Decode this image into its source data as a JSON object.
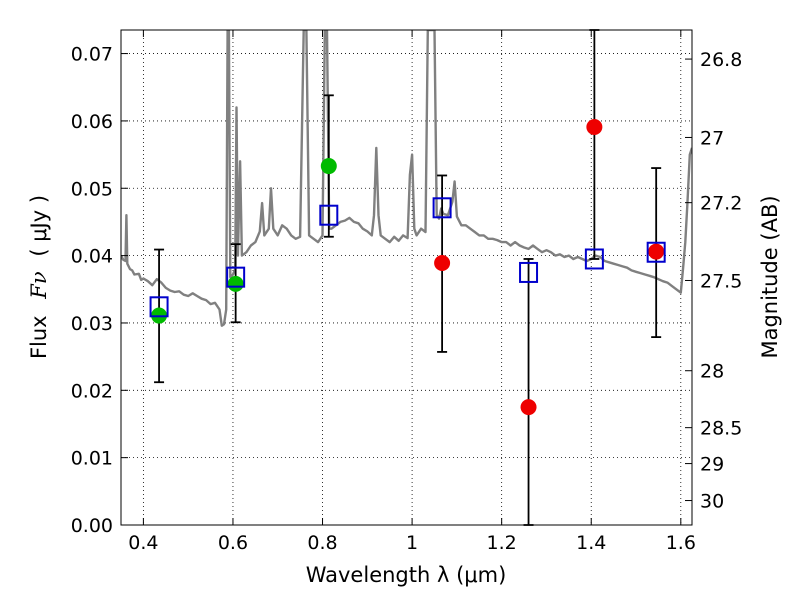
{
  "chart_data": {
    "type": "scatter",
    "xlabel": "Wavelength  λ (μm)",
    "ylabel_left_prefix": "Flux",
    "ylabel_left_symbol": "Fν",
    "ylabel_left_unit": "( μJy )",
    "ylabel_right": "Magnitude (AB)",
    "xlim": [
      0.35,
      1.625
    ],
    "ylim": [
      0.0,
      0.0735
    ],
    "grid": true,
    "x_ticks": [
      0.4,
      0.6,
      0.8,
      1.0,
      1.2,
      1.4,
      1.6
    ],
    "x_tick_labels": [
      "0.4",
      "0.6",
      "0.8",
      "1",
      "1.2",
      "1.4",
      "1.6"
    ],
    "y_ticks": [
      0.0,
      0.01,
      0.02,
      0.03,
      0.04,
      0.05,
      0.06,
      0.07
    ],
    "y_tick_labels": [
      "0.00",
      "0.01",
      "0.02",
      "0.03",
      "0.04",
      "0.05",
      "0.06",
      "0.07"
    ],
    "mag_ticks": [
      {
        "mag": 26.8,
        "label": "26.8"
      },
      {
        "mag": 27.0,
        "label": "27"
      },
      {
        "mag": 27.2,
        "label": "27.2"
      },
      {
        "mag": 27.5,
        "label": "27.5"
      },
      {
        "mag": 28.0,
        "label": "28"
      },
      {
        "mag": 28.5,
        "label": "28.5"
      },
      {
        "mag": 29.0,
        "label": "29"
      },
      {
        "mag": 30.0,
        "label": "30"
      }
    ],
    "series": [
      {
        "marker": "circle",
        "color": "#00bb00",
        "points": [
          {
            "x": 0.435,
            "y": 0.0311,
            "yerr_low": 0.0212,
            "yerr_high": 0.0409
          },
          {
            "x": 0.606,
            "y": 0.0358,
            "yerr_low": 0.0301,
            "yerr_high": 0.0417
          },
          {
            "x": 0.814,
            "y": 0.0533,
            "yerr_low": 0.0428,
            "yerr_high": 0.0638
          }
        ]
      },
      {
        "marker": "circle",
        "color": "#ee0000",
        "points": [
          {
            "x": 1.067,
            "y": 0.0389,
            "yerr_low": 0.0257,
            "yerr_high": 0.0519
          },
          {
            "x": 1.26,
            "y": 0.0175,
            "yerr_low": 0.0,
            "yerr_high": 0.0395
          },
          {
            "x": 1.407,
            "y": 0.0591,
            "yerr_low": 0.0395,
            "yerr_high": 0.0735
          },
          {
            "x": 1.545,
            "y": 0.0406,
            "yerr_low": 0.0279,
            "yerr_high": 0.053
          }
        ]
      },
      {
        "marker": "open-square",
        "color": "#0000cc",
        "points": [
          {
            "x": 0.435,
            "y": 0.0324
          },
          {
            "x": 0.606,
            "y": 0.0368
          },
          {
            "x": 0.814,
            "y": 0.046
          },
          {
            "x": 1.067,
            "y": 0.0471
          },
          {
            "x": 1.26,
            "y": 0.0375
          },
          {
            "x": 1.407,
            "y": 0.0395
          },
          {
            "x": 1.545,
            "y": 0.0405
          }
        ]
      },
      {
        "marker": "line",
        "color": "#808080",
        "points": [
          [
            0.35,
            0.04
          ],
          [
            0.355,
            0.0394
          ],
          [
            0.36,
            0.0392
          ],
          [
            0.362,
            0.046
          ],
          [
            0.364,
            0.0388
          ],
          [
            0.37,
            0.038
          ],
          [
            0.375,
            0.0378
          ],
          [
            0.38,
            0.0372
          ],
          [
            0.39,
            0.0373
          ],
          [
            0.395,
            0.0364
          ],
          [
            0.4,
            0.0366
          ],
          [
            0.41,
            0.0362
          ],
          [
            0.42,
            0.0356
          ],
          [
            0.43,
            0.0365
          ],
          [
            0.44,
            0.036
          ],
          [
            0.45,
            0.0352
          ],
          [
            0.46,
            0.0348
          ],
          [
            0.47,
            0.0346
          ],
          [
            0.48,
            0.0347
          ],
          [
            0.49,
            0.0342
          ],
          [
            0.5,
            0.034
          ],
          [
            0.51,
            0.0344
          ],
          [
            0.52,
            0.034
          ],
          [
            0.53,
            0.0336
          ],
          [
            0.54,
            0.0334
          ],
          [
            0.55,
            0.0328
          ],
          [
            0.56,
            0.033
          ],
          [
            0.57,
            0.032
          ],
          [
            0.575,
            0.0296
          ],
          [
            0.58,
            0.0298
          ],
          [
            0.585,
            0.032
          ],
          [
            0.588,
            0.0735
          ],
          [
            0.591,
            0.0735
          ],
          [
            0.594,
            0.0368
          ],
          [
            0.6,
            0.0372
          ],
          [
            0.605,
            0.038
          ],
          [
            0.608,
            0.062
          ],
          [
            0.611,
            0.04
          ],
          [
            0.616,
            0.054
          ],
          [
            0.62,
            0.04
          ],
          [
            0.63,
            0.0405
          ],
          [
            0.64,
            0.0415
          ],
          [
            0.65,
            0.042
          ],
          [
            0.66,
            0.0436
          ],
          [
            0.665,
            0.0478
          ],
          [
            0.67,
            0.043
          ],
          [
            0.68,
            0.044
          ],
          [
            0.685,
            0.05
          ],
          [
            0.69,
            0.044
          ],
          [
            0.7,
            0.043
          ],
          [
            0.71,
            0.0445
          ],
          [
            0.72,
            0.044
          ],
          [
            0.73,
            0.043
          ],
          [
            0.74,
            0.0425
          ],
          [
            0.75,
            0.0428
          ],
          [
            0.758,
            0.0735
          ],
          [
            0.764,
            0.0735
          ],
          [
            0.77,
            0.043
          ],
          [
            0.78,
            0.0425
          ],
          [
            0.79,
            0.042
          ],
          [
            0.8,
            0.043
          ],
          [
            0.805,
            0.0735
          ],
          [
            0.81,
            0.0735
          ],
          [
            0.815,
            0.044
          ],
          [
            0.82,
            0.044
          ],
          [
            0.83,
            0.0445
          ],
          [
            0.84,
            0.045
          ],
          [
            0.85,
            0.0452
          ],
          [
            0.86,
            0.0456
          ],
          [
            0.87,
            0.045
          ],
          [
            0.88,
            0.0448
          ],
          [
            0.89,
            0.044
          ],
          [
            0.9,
            0.0436
          ],
          [
            0.91,
            0.043
          ],
          [
            0.915,
            0.046
          ],
          [
            0.92,
            0.056
          ],
          [
            0.925,
            0.046
          ],
          [
            0.93,
            0.043
          ],
          [
            0.94,
            0.0425
          ],
          [
            0.95,
            0.042
          ],
          [
            0.96,
            0.0428
          ],
          [
            0.97,
            0.0422
          ],
          [
            0.98,
            0.043
          ],
          [
            0.99,
            0.0426
          ],
          [
            0.995,
            0.052
          ],
          [
            1.0,
            0.055
          ],
          [
            1.005,
            0.044
          ],
          [
            1.01,
            0.043
          ],
          [
            1.02,
            0.044
          ],
          [
            1.03,
            0.0435
          ],
          [
            1.035,
            0.0735
          ],
          [
            1.04,
            0.0735
          ],
          [
            1.05,
            0.0735
          ],
          [
            1.055,
            0.046
          ],
          [
            1.06,
            0.0455
          ],
          [
            1.065,
            0.047
          ],
          [
            1.07,
            0.0462
          ],
          [
            1.08,
            0.046
          ],
          [
            1.09,
            0.048
          ],
          [
            1.095,
            0.051
          ],
          [
            1.1,
            0.0458
          ],
          [
            1.11,
            0.0445
          ],
          [
            1.12,
            0.0445
          ],
          [
            1.13,
            0.044
          ],
          [
            1.14,
            0.0435
          ],
          [
            1.15,
            0.043
          ],
          [
            1.16,
            0.043
          ],
          [
            1.17,
            0.0425
          ],
          [
            1.18,
            0.0425
          ],
          [
            1.19,
            0.0423
          ],
          [
            1.2,
            0.042
          ],
          [
            1.21,
            0.042
          ],
          [
            1.22,
            0.0415
          ],
          [
            1.23,
            0.042
          ],
          [
            1.24,
            0.0415
          ],
          [
            1.25,
            0.0412
          ],
          [
            1.26,
            0.041
          ],
          [
            1.27,
            0.0415
          ],
          [
            1.28,
            0.041
          ],
          [
            1.29,
            0.0405
          ],
          [
            1.3,
            0.0408
          ],
          [
            1.31,
            0.0405
          ],
          [
            1.32,
            0.04
          ],
          [
            1.33,
            0.0402
          ],
          [
            1.34,
            0.0398
          ],
          [
            1.35,
            0.04
          ],
          [
            1.36,
            0.0395
          ],
          [
            1.37,
            0.0398
          ],
          [
            1.38,
            0.0395
          ],
          [
            1.39,
            0.0392
          ],
          [
            1.4,
            0.0395
          ],
          [
            1.41,
            0.04
          ],
          [
            1.42,
            0.0398
          ],
          [
            1.43,
            0.0392
          ],
          [
            1.44,
            0.039
          ],
          [
            1.45,
            0.0388
          ],
          [
            1.46,
            0.0386
          ],
          [
            1.47,
            0.0384
          ],
          [
            1.48,
            0.0382
          ],
          [
            1.49,
            0.0378
          ],
          [
            1.5,
            0.0376
          ],
          [
            1.51,
            0.0374
          ],
          [
            1.52,
            0.0372
          ],
          [
            1.53,
            0.037
          ],
          [
            1.54,
            0.0368
          ],
          [
            1.55,
            0.0365
          ],
          [
            1.56,
            0.0362
          ],
          [
            1.57,
            0.036
          ],
          [
            1.58,
            0.0355
          ],
          [
            1.59,
            0.035
          ],
          [
            1.6,
            0.0345
          ],
          [
            1.605,
            0.038
          ],
          [
            1.61,
            0.042
          ],
          [
            1.615,
            0.048
          ],
          [
            1.62,
            0.055
          ],
          [
            1.625,
            0.056
          ]
        ]
      }
    ]
  }
}
